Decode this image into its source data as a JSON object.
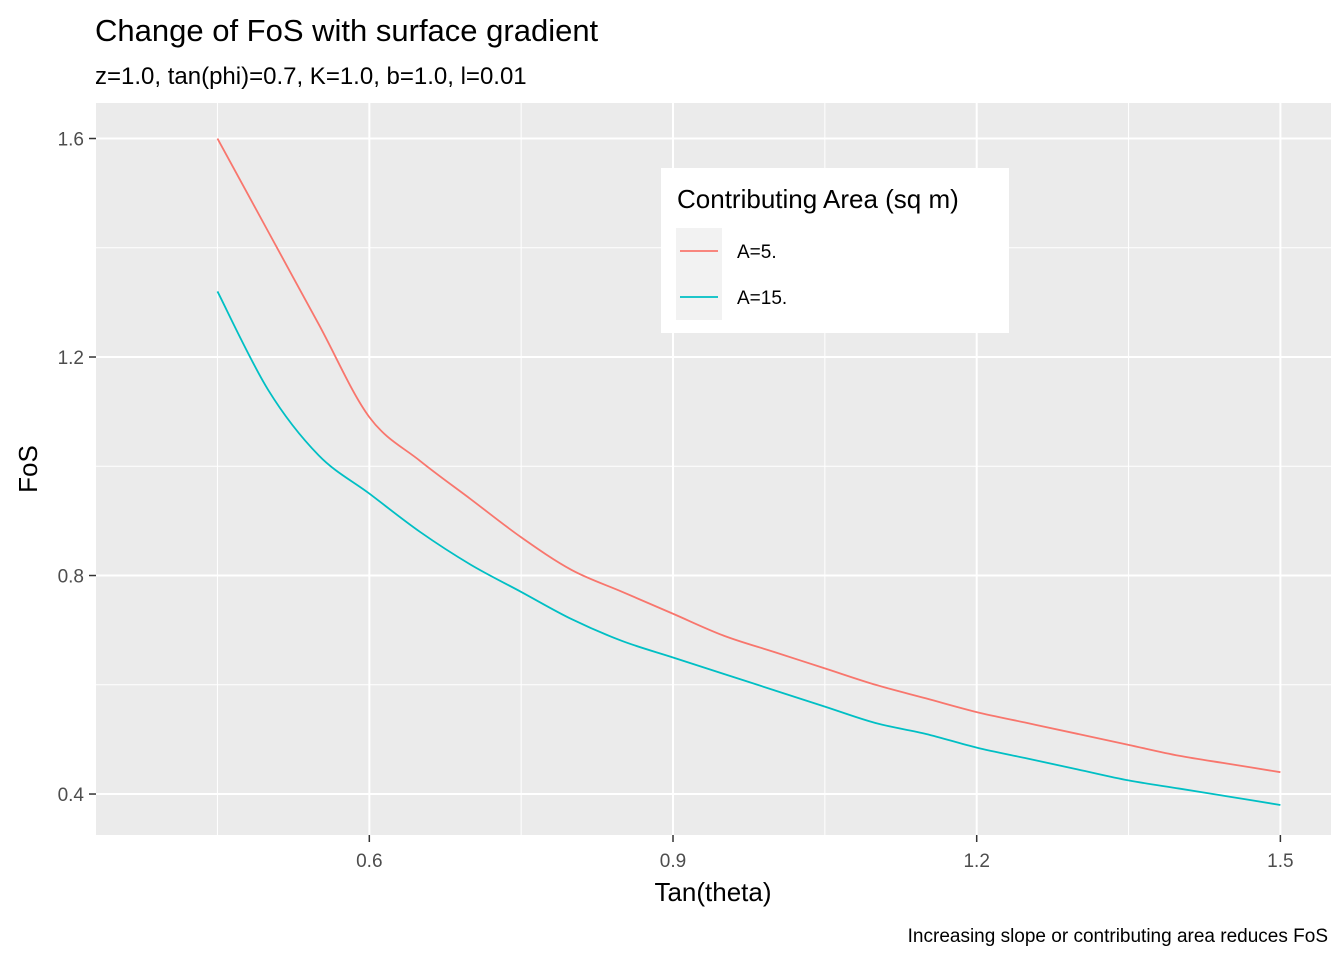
{
  "chart_data": {
    "type": "line",
    "title": "Change of FoS with surface gradient",
    "subtitle": "z=1.0, tan(phi)=0.7, K=1.0, b=1.0, l=0.01",
    "xlabel": "Tan(theta)",
    "ylabel": "FoS",
    "caption": "Increasing slope or contributing area reduces FoS",
    "xlim": [
      0.33,
      1.55
    ],
    "ylim": [
      0.325,
      1.665
    ],
    "x_ticks": [
      0.6,
      0.9,
      1.2,
      1.5
    ],
    "x_tick_labels": [
      "0.6",
      "0.9",
      "1.2",
      "1.5"
    ],
    "y_ticks": [
      0.4,
      0.8,
      1.2,
      1.6
    ],
    "y_tick_labels": [
      "0.4",
      "0.8",
      "1.2",
      "1.6"
    ],
    "grid": true,
    "legend": {
      "title": "Contributing Area (sq m)",
      "placement": "top-right inside plot"
    },
    "series": [
      {
        "name": "A=5.",
        "color": "#F8766D",
        "x": [
          0.45,
          0.5,
          0.55,
          0.6,
          0.65,
          0.7,
          0.75,
          0.8,
          0.85,
          0.9,
          0.95,
          1.0,
          1.05,
          1.1,
          1.15,
          1.2,
          1.25,
          1.3,
          1.35,
          1.4,
          1.45,
          1.5
        ],
        "y": [
          1.6,
          1.43,
          1.26,
          1.09,
          1.01,
          0.94,
          0.87,
          0.81,
          0.77,
          0.73,
          0.69,
          0.66,
          0.63,
          0.6,
          0.575,
          0.55,
          0.53,
          0.51,
          0.49,
          0.47,
          0.455,
          0.44
        ]
      },
      {
        "name": "A=15.",
        "color": "#00BFC4",
        "x": [
          0.45,
          0.5,
          0.55,
          0.6,
          0.65,
          0.7,
          0.75,
          0.8,
          0.85,
          0.9,
          0.95,
          1.0,
          1.05,
          1.1,
          1.15,
          1.2,
          1.25,
          1.3,
          1.35,
          1.4,
          1.45,
          1.5
        ],
        "y": [
          1.32,
          1.14,
          1.02,
          0.95,
          0.88,
          0.82,
          0.77,
          0.72,
          0.68,
          0.65,
          0.62,
          0.59,
          0.56,
          0.53,
          0.51,
          0.485,
          0.465,
          0.445,
          0.425,
          0.41,
          0.395,
          0.38
        ]
      }
    ]
  }
}
